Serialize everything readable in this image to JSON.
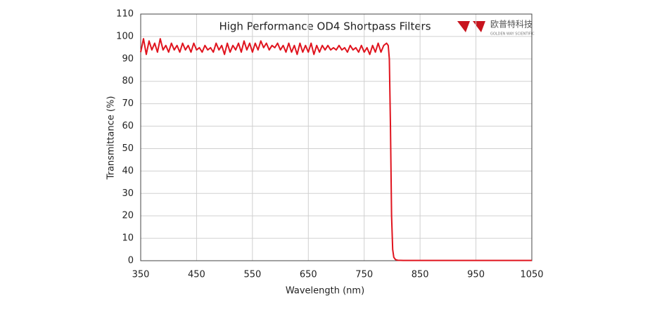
{
  "chart_data": {
    "type": "line",
    "title": "High Performance OD4 Shortpass  Filters",
    "logo_name": "欧普特科技",
    "logo_subtitle": "GOLDEN WAY SCIENTIFIC",
    "x_label": "Wavelength (nm)",
    "y_label": "Transmittance (%)",
    "x": [
      350,
      355,
      360,
      365,
      370,
      375,
      380,
      385,
      390,
      395,
      400,
      405,
      410,
      415,
      420,
      425,
      430,
      435,
      440,
      445,
      450,
      455,
      460,
      465,
      470,
      475,
      480,
      485,
      490,
      495,
      500,
      505,
      510,
      515,
      520,
      525,
      530,
      535,
      540,
      545,
      550,
      555,
      560,
      565,
      570,
      575,
      580,
      585,
      590,
      595,
      600,
      605,
      610,
      615,
      620,
      625,
      630,
      635,
      640,
      645,
      650,
      655,
      660,
      665,
      670,
      675,
      680,
      685,
      690,
      695,
      700,
      705,
      710,
      715,
      720,
      725,
      730,
      735,
      740,
      745,
      750,
      755,
      760,
      765,
      770,
      775,
      780,
      785,
      790,
      793,
      795,
      797,
      799,
      801,
      803,
      806,
      810,
      820,
      850,
      900,
      950,
      1000,
      1050
    ],
    "series": [
      {
        "name": "Transmittance",
        "color": "#e0141e",
        "values": [
          93,
          99,
          92,
          98,
          94,
          97,
          93,
          99,
          94,
          96,
          93,
          97,
          94,
          96,
          93,
          97,
          94,
          96,
          93,
          97,
          94,
          95,
          93,
          96,
          94,
          95,
          93,
          97,
          94,
          96,
          92,
          97,
          93,
          96,
          94,
          97,
          93,
          98,
          94,
          97,
          93,
          97,
          94,
          98,
          95,
          97,
          94,
          96,
          95,
          97,
          94,
          96,
          93,
          97,
          93,
          96,
          92,
          97,
          93,
          96,
          93,
          97,
          92,
          96,
          93,
          96,
          94,
          96,
          94,
          95,
          94,
          96,
          94,
          95,
          93,
          96,
          94,
          95,
          93,
          96,
          93,
          95,
          92,
          96,
          93,
          97,
          93,
          96,
          97,
          96,
          90,
          60,
          20,
          5,
          1.5,
          0.5,
          0.2,
          0.1,
          0.1,
          0.1,
          0.1,
          0.1,
          0.1
        ]
      }
    ],
    "xlim": [
      350,
      1050
    ],
    "xticks": [
      350,
      450,
      550,
      650,
      750,
      850,
      950,
      1050
    ],
    "ylim": [
      0,
      110
    ],
    "yticks": [
      0,
      10,
      20,
      30,
      40,
      50,
      60,
      70,
      80,
      90,
      100,
      110
    ],
    "grid": true
  }
}
